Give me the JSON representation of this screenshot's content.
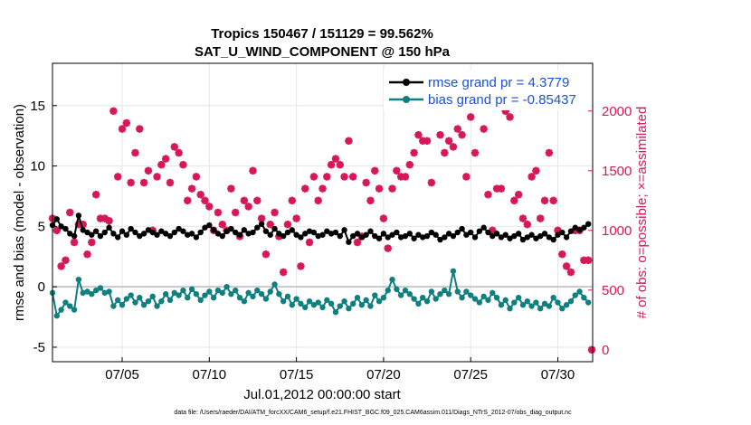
{
  "chart_data": {
    "type": "line",
    "title": "Tropics 150467 / 151129 = 99.562%",
    "subtitle": "SAT_U_WIND_COMPONENT @ 150 hPa",
    "xlabel": "Jul.01,2012 00:00:00 start",
    "ylabel_left": "rmse and bias (model - observation)",
    "ylabel_right": "# of obs: o=possible; ×=assimilated",
    "footer": "data file: /Users/raeder/DAI/ATM_forcXX/CAM6_setup/f.e21.FHIST_BGC.f09_025.CAM6assim.011/Diags_NTrS_2012-07/obs_diag_output.nc",
    "xlim": [
      1,
      32
    ],
    "ylim_left": [
      -6.2,
      18.5
    ],
    "ylim_right": [
      -100,
      2400
    ],
    "x_ticks": [
      {
        "value": 5,
        "label": "07/05"
      },
      {
        "value": 10,
        "label": "07/10"
      },
      {
        "value": 15,
        "label": "07/15"
      },
      {
        "value": 20,
        "label": "07/20"
      },
      {
        "value": 25,
        "label": "07/25"
      },
      {
        "value": 30,
        "label": "07/30"
      }
    ],
    "y_ticks_left": [
      {
        "value": -5,
        "label": "-5"
      },
      {
        "value": 0,
        "label": "0"
      },
      {
        "value": 5,
        "label": "5"
      },
      {
        "value": 10,
        "label": "10"
      },
      {
        "value": 15,
        "label": "15"
      }
    ],
    "y_ticks_right": [
      {
        "value": 0,
        "label": "0"
      },
      {
        "value": 500,
        "label": "500"
      },
      {
        "value": 1000,
        "label": "1000"
      },
      {
        "value": 1500,
        "label": "1500"
      },
      {
        "value": 2000,
        "label": "2000"
      }
    ],
    "grid": true,
    "zero_line": 0,
    "legend_position": "top-right",
    "colors": {
      "rmse": "#000000",
      "bias": "#0f7f7f",
      "obs": "#d6185a",
      "legend_text": "#1a52d6",
      "zero_line": "#c8c8c8"
    },
    "series": [
      {
        "name": "rmse grand pr = 4.3779",
        "axis": "left",
        "x": [
          1.0,
          1.25,
          1.5,
          1.75,
          2.0,
          2.25,
          2.5,
          2.75,
          3.0,
          3.25,
          3.5,
          3.75,
          4.0,
          4.25,
          4.5,
          4.75,
          5.0,
          5.25,
          5.5,
          5.75,
          6.0,
          6.25,
          6.5,
          6.75,
          7.0,
          7.25,
          7.5,
          7.75,
          8.0,
          8.25,
          8.5,
          8.75,
          9.0,
          9.25,
          9.5,
          9.75,
          10.0,
          10.25,
          10.5,
          10.75,
          11.0,
          11.25,
          11.5,
          11.75,
          12.0,
          12.25,
          12.5,
          12.75,
          13.0,
          13.25,
          13.5,
          13.75,
          14.0,
          14.25,
          14.5,
          14.75,
          15.0,
          15.25,
          15.5,
          15.75,
          16.0,
          16.25,
          16.5,
          16.75,
          17.0,
          17.25,
          17.5,
          17.75,
          18.0,
          18.25,
          18.5,
          18.75,
          19.0,
          19.25,
          19.5,
          19.75,
          20.0,
          20.25,
          20.5,
          20.75,
          21.0,
          21.25,
          21.5,
          21.75,
          22.0,
          22.25,
          22.5,
          22.75,
          23.0,
          23.25,
          23.5,
          23.75,
          24.0,
          24.25,
          24.5,
          24.75,
          25.0,
          25.25,
          25.5,
          25.75,
          26.0,
          26.25,
          26.5,
          26.75,
          27.0,
          27.25,
          27.5,
          27.75,
          28.0,
          28.25,
          28.5,
          28.75,
          29.0,
          29.25,
          29.5,
          29.75,
          30.0,
          30.25,
          30.5,
          30.75,
          31.0,
          31.25,
          31.5,
          31.75
        ],
        "values": [
          5.1,
          5.6,
          5.0,
          4.8,
          4.4,
          4.2,
          5.9,
          4.7,
          4.5,
          4.3,
          4.6,
          4.2,
          4.5,
          4.9,
          4.4,
          4.1,
          4.6,
          4.3,
          4.8,
          4.5,
          4.2,
          4.4,
          4.7,
          4.5,
          4.3,
          4.6,
          4.4,
          4.2,
          4.5,
          4.8,
          4.6,
          4.3,
          4.4,
          4.1,
          4.5,
          4.9,
          5.1,
          4.7,
          4.4,
          4.2,
          4.6,
          4.8,
          4.5,
          4.3,
          4.7,
          4.4,
          4.5,
          4.9,
          5.2,
          4.6,
          4.3,
          4.8,
          4.4,
          4.2,
          4.5,
          4.7,
          4.3,
          4.1,
          4.4,
          4.6,
          4.5,
          4.2,
          4.3,
          4.6,
          4.4,
          4.5,
          4.2,
          4.7,
          3.7,
          4.2,
          4.4,
          4.1,
          4.3,
          4.6,
          4.2,
          4.0,
          4.4,
          4.1,
          4.3,
          4.5,
          4.1,
          4.2,
          4.4,
          4.0,
          4.3,
          4.1,
          4.2,
          4.5,
          4.3,
          3.9,
          4.1,
          4.4,
          4.2,
          4.5,
          4.8,
          4.3,
          4.5,
          4.1,
          4.6,
          4.9,
          4.5,
          4.2,
          4.4,
          4.1,
          4.3,
          4.0,
          4.2,
          4.4,
          3.9,
          4.1,
          4.3,
          4.0,
          4.2,
          4.4,
          4.1,
          3.9,
          4.3,
          4.5,
          4.1,
          4.6,
          4.9,
          4.7,
          4.9,
          5.2
        ]
      },
      {
        "name": "bias grand pr = -0.85437",
        "axis": "left",
        "x": [
          1.0,
          1.25,
          1.5,
          1.75,
          2.0,
          2.25,
          2.5,
          2.75,
          3.0,
          3.25,
          3.5,
          3.75,
          4.0,
          4.25,
          4.5,
          4.75,
          5.0,
          5.25,
          5.5,
          5.75,
          6.0,
          6.25,
          6.5,
          6.75,
          7.0,
          7.25,
          7.5,
          7.75,
          8.0,
          8.25,
          8.5,
          8.75,
          9.0,
          9.25,
          9.5,
          9.75,
          10.0,
          10.25,
          10.5,
          10.75,
          11.0,
          11.25,
          11.5,
          11.75,
          12.0,
          12.25,
          12.5,
          12.75,
          13.0,
          13.25,
          13.5,
          13.75,
          14.0,
          14.25,
          14.5,
          14.75,
          15.0,
          15.25,
          15.5,
          15.75,
          16.0,
          16.25,
          16.5,
          16.75,
          17.0,
          17.25,
          17.5,
          17.75,
          18.0,
          18.25,
          18.5,
          18.75,
          19.0,
          19.25,
          19.5,
          19.75,
          20.0,
          20.25,
          20.5,
          20.75,
          21.0,
          21.25,
          21.5,
          21.75,
          22.0,
          22.25,
          22.5,
          22.75,
          23.0,
          23.25,
          23.5,
          23.75,
          24.0,
          24.25,
          24.5,
          24.75,
          25.0,
          25.25,
          25.5,
          25.75,
          26.0,
          26.25,
          26.5,
          26.75,
          27.0,
          27.25,
          27.5,
          27.75,
          28.0,
          28.25,
          28.5,
          28.75,
          29.0,
          29.25,
          29.5,
          29.75,
          30.0,
          30.25,
          30.5,
          30.75,
          31.0,
          31.25,
          31.5,
          31.75
        ],
        "values": [
          -0.5,
          -2.4,
          -1.9,
          -1.3,
          -1.6,
          -1.9,
          0.6,
          -0.5,
          -0.4,
          -0.6,
          -0.3,
          -0.1,
          -0.5,
          -0.4,
          -1.6,
          -1.1,
          -1.5,
          -1.0,
          -0.7,
          -1.3,
          -0.9,
          -1.5,
          -1.2,
          -0.8,
          -1.6,
          -1.2,
          -0.6,
          -1.1,
          -0.5,
          -0.7,
          -0.3,
          -0.9,
          -0.2,
          -0.6,
          -1.1,
          -0.7,
          -0.4,
          -0.9,
          -0.3,
          -0.5,
          0.0,
          -0.6,
          -0.3,
          -0.9,
          -1.2,
          -0.5,
          -0.8,
          -0.3,
          -0.6,
          -1.0,
          -0.4,
          0.2,
          -0.6,
          -1.2,
          -0.8,
          -1.5,
          -1.0,
          -1.4,
          -1.7,
          -1.2,
          -1.5,
          -1.3,
          -1.7,
          -1.1,
          -1.4,
          -2.1,
          -1.6,
          -1.2,
          -1.8,
          -1.4,
          -0.9,
          -1.5,
          -1.1,
          -1.6,
          -0.7,
          -1.2,
          -0.9,
          -0.3,
          0.6,
          -0.2,
          -0.7,
          -0.3,
          -0.6,
          -1.0,
          -1.4,
          -0.9,
          -1.2,
          -0.4,
          -1.0,
          -0.6,
          -0.3,
          -0.6,
          1.3,
          -0.4,
          -0.9,
          -0.4,
          -0.7,
          -1.0,
          -1.3,
          -0.8,
          -1.1,
          -0.5,
          -0.9,
          -1.5,
          -1.1,
          -1.8,
          -1.3,
          -0.9,
          -1.5,
          -1.2,
          -1.6,
          -1.3,
          -1.8,
          -1.4,
          -1.6,
          -0.9,
          -1.3,
          -1.8,
          -1.5,
          -1.2,
          -0.7,
          -0.4,
          -0.9,
          -1.3
        ]
      },
      {
        "name": "# of obs assimilated",
        "axis": "right",
        "x": [
          1.0,
          1.25,
          1.5,
          1.75,
          2.0,
          2.25,
          2.5,
          2.75,
          3.0,
          3.25,
          3.5,
          3.75,
          4.0,
          4.25,
          4.5,
          4.75,
          5.0,
          5.25,
          5.5,
          5.75,
          6.0,
          6.25,
          6.5,
          6.75,
          7.0,
          7.25,
          7.5,
          7.75,
          8.0,
          8.25,
          8.5,
          8.75,
          9.0,
          9.25,
          9.5,
          9.75,
          10.0,
          10.25,
          10.5,
          10.75,
          11.0,
          11.25,
          11.5,
          11.75,
          12.0,
          12.25,
          12.5,
          12.75,
          13.0,
          13.25,
          13.5,
          13.75,
          14.0,
          14.25,
          14.5,
          14.75,
          15.0,
          15.25,
          15.5,
          15.75,
          16.0,
          16.25,
          16.5,
          16.75,
          17.0,
          17.25,
          17.5,
          17.75,
          18.0,
          18.25,
          18.5,
          18.75,
          19.0,
          19.25,
          19.5,
          19.75,
          20.0,
          20.25,
          20.5,
          20.75,
          21.0,
          21.25,
          21.5,
          21.75,
          22.0,
          22.25,
          22.5,
          22.75,
          23.0,
          23.25,
          23.5,
          23.75,
          24.0,
          24.25,
          24.5,
          24.75,
          25.0,
          25.25,
          25.5,
          25.75,
          26.0,
          26.25,
          26.5,
          26.75,
          27.0,
          27.25,
          27.5,
          27.75,
          28.0,
          28.25,
          28.5,
          28.75,
          29.0,
          29.25,
          29.5,
          29.75,
          30.0,
          30.25,
          30.5,
          30.75,
          31.0,
          31.25,
          31.5,
          31.75
        ],
        "values": [
          1100,
          1000,
          700,
          750,
          1150,
          900,
          1050,
          1050,
          800,
          900,
          1300,
          1100,
          1100,
          1080,
          2000,
          1450,
          1850,
          1900,
          1400,
          1650,
          1850,
          1400,
          1500,
          1000,
          1450,
          1550,
          1600,
          1400,
          1700,
          1650,
          1550,
          1250,
          1350,
          1450,
          1300,
          1250,
          1200,
          1000,
          1150,
          1050,
          1000,
          1350,
          1150,
          950,
          1250,
          1200,
          1500,
          1250,
          1100,
          800,
          1050,
          1150,
          950,
          650,
          1050,
          1250,
          1100,
          700,
          1350,
          900,
          1450,
          1250,
          1350,
          1450,
          1550,
          1600,
          1550,
          1450,
          1750,
          1450,
          900,
          950,
          1400,
          1250,
          1500,
          1350,
          1100,
          850,
          1350,
          1500,
          1450,
          1450,
          1550,
          1650,
          1800,
          1750,
          1750,
          1400,
          2050,
          1800,
          1650,
          1750,
          1700,
          1850,
          1800,
          1450,
          1950,
          1650,
          2100,
          1850,
          1300,
          1000,
          1350,
          1350,
          2000,
          1950,
          1250,
          1300,
          1100,
          1050,
          1450,
          1500,
          1100,
          1250,
          1650,
          1250,
          1000,
          800,
          700,
          650,
          1000,
          1000,
          750,
          750
        ]
      }
    ],
    "right_axis_extra_points": [
      {
        "x": 31.95,
        "y": 0
      }
    ]
  }
}
